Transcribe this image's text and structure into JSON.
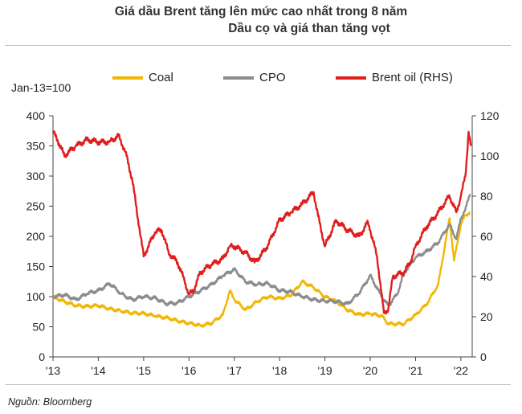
{
  "title_line1": "Giá dầu Brent tăng lên mức cao nhất trong 8 năm",
  "title_line2": "Dầu cọ và giá than tăng vọt",
  "base_label": "Jan-13=100",
  "source": "Nguồn: Bloomberg",
  "chart_data": {
    "type": "line",
    "title": "Giá dầu Brent tăng lên mức cao nhất trong 8 năm",
    "subtitle": "Dầu cọ và giá than tăng vọt",
    "ylabel": "Jan-13=100",
    "y_left_range": [
      0,
      400
    ],
    "y_left_ticks": [
      0,
      50,
      100,
      150,
      200,
      250,
      300,
      350,
      400
    ],
    "y_right_range": [
      0,
      120
    ],
    "y_right_ticks": [
      0,
      20,
      40,
      60,
      80,
      100,
      120
    ],
    "x_range": [
      2013.0,
      2022.25
    ],
    "x_ticks": [
      "'13",
      "'14",
      "'15",
      "'16",
      "'17",
      "'18",
      "'19",
      "'20",
      "'21",
      "'22"
    ],
    "legend_position": "top",
    "series": [
      {
        "name": "Coal",
        "axis": "left",
        "color": "#f2b705",
        "points": [
          [
            2013.0,
            100
          ],
          [
            2013.25,
            92
          ],
          [
            2013.5,
            85
          ],
          [
            2013.75,
            84
          ],
          [
            2014.0,
            85
          ],
          [
            2014.25,
            80
          ],
          [
            2014.5,
            76
          ],
          [
            2014.75,
            73
          ],
          [
            2015.0,
            72
          ],
          [
            2015.25,
            68
          ],
          [
            2015.5,
            65
          ],
          [
            2015.75,
            60
          ],
          [
            2016.0,
            56
          ],
          [
            2016.25,
            52
          ],
          [
            2016.5,
            56
          ],
          [
            2016.75,
            70
          ],
          [
            2016.9,
            110
          ],
          [
            2017.0,
            95
          ],
          [
            2017.25,
            78
          ],
          [
            2017.5,
            92
          ],
          [
            2017.75,
            100
          ],
          [
            2018.0,
            97
          ],
          [
            2018.25,
            102
          ],
          [
            2018.5,
            125
          ],
          [
            2018.75,
            115
          ],
          [
            2019.0,
            100
          ],
          [
            2019.25,
            92
          ],
          [
            2019.5,
            78
          ],
          [
            2019.75,
            70
          ],
          [
            2020.0,
            72
          ],
          [
            2020.25,
            68
          ],
          [
            2020.4,
            55
          ],
          [
            2020.75,
            55
          ],
          [
            2021.0,
            70
          ],
          [
            2021.25,
            88
          ],
          [
            2021.5,
            120
          ],
          [
            2021.75,
            230
          ],
          [
            2021.85,
            160
          ],
          [
            2022.0,
            220
          ],
          [
            2022.1,
            235
          ],
          [
            2022.2,
            240
          ]
        ]
      },
      {
        "name": "CPO",
        "axis": "left",
        "color": "#8c8c8c",
        "points": [
          [
            2013.0,
            100
          ],
          [
            2013.25,
            103
          ],
          [
            2013.5,
            95
          ],
          [
            2013.75,
            105
          ],
          [
            2014.0,
            110
          ],
          [
            2014.25,
            122
          ],
          [
            2014.5,
            105
          ],
          [
            2014.75,
            95
          ],
          [
            2015.0,
            100
          ],
          [
            2015.25,
            98
          ],
          [
            2015.5,
            88
          ],
          [
            2015.75,
            90
          ],
          [
            2016.0,
            100
          ],
          [
            2016.25,
            110
          ],
          [
            2016.5,
            120
          ],
          [
            2016.75,
            135
          ],
          [
            2017.0,
            145
          ],
          [
            2017.25,
            125
          ],
          [
            2017.5,
            120
          ],
          [
            2017.75,
            122
          ],
          [
            2018.0,
            110
          ],
          [
            2018.25,
            108
          ],
          [
            2018.5,
            100
          ],
          [
            2018.75,
            95
          ],
          [
            2019.0,
            93
          ],
          [
            2019.25,
            92
          ],
          [
            2019.5,
            88
          ],
          [
            2019.75,
            105
          ],
          [
            2020.0,
            135
          ],
          [
            2020.25,
            100
          ],
          [
            2020.4,
            85
          ],
          [
            2020.6,
            105
          ],
          [
            2020.75,
            140
          ],
          [
            2021.0,
            165
          ],
          [
            2021.25,
            175
          ],
          [
            2021.5,
            190
          ],
          [
            2021.75,
            220
          ],
          [
            2021.9,
            195
          ],
          [
            2022.0,
            230
          ],
          [
            2022.1,
            245
          ],
          [
            2022.2,
            270
          ]
        ]
      },
      {
        "name": "Brent oil (RHS)",
        "axis": "right",
        "color": "#e01e1e",
        "points": [
          [
            2013.0,
            112
          ],
          [
            2013.1,
            108
          ],
          [
            2013.25,
            100
          ],
          [
            2013.5,
            105
          ],
          [
            2013.75,
            108
          ],
          [
            2014.0,
            107
          ],
          [
            2014.25,
            107
          ],
          [
            2014.45,
            110
          ],
          [
            2014.6,
            102
          ],
          [
            2014.75,
            88
          ],
          [
            2014.9,
            65
          ],
          [
            2015.0,
            50
          ],
          [
            2015.1,
            55
          ],
          [
            2015.25,
            62
          ],
          [
            2015.4,
            63
          ],
          [
            2015.55,
            52
          ],
          [
            2015.75,
            47
          ],
          [
            2015.9,
            38
          ],
          [
            2016.0,
            31
          ],
          [
            2016.1,
            33
          ],
          [
            2016.25,
            42
          ],
          [
            2016.5,
            46
          ],
          [
            2016.75,
            49
          ],
          [
            2016.9,
            55
          ],
          [
            2017.0,
            55
          ],
          [
            2017.25,
            52
          ],
          [
            2017.45,
            47
          ],
          [
            2017.6,
            51
          ],
          [
            2017.75,
            56
          ],
          [
            2018.0,
            68
          ],
          [
            2018.25,
            72
          ],
          [
            2018.5,
            76
          ],
          [
            2018.75,
            82
          ],
          [
            2018.85,
            70
          ],
          [
            2019.0,
            55
          ],
          [
            2019.25,
            68
          ],
          [
            2019.5,
            63
          ],
          [
            2019.75,
            60
          ],
          [
            2019.95,
            67
          ],
          [
            2020.0,
            63
          ],
          [
            2020.15,
            50
          ],
          [
            2020.3,
            22
          ],
          [
            2020.4,
            24
          ],
          [
            2020.5,
            40
          ],
          [
            2020.75,
            42
          ],
          [
            2020.9,
            48
          ],
          [
            2021.0,
            55
          ],
          [
            2021.25,
            65
          ],
          [
            2021.5,
            72
          ],
          [
            2021.75,
            80
          ],
          [
            2021.9,
            72
          ],
          [
            2022.0,
            80
          ],
          [
            2022.1,
            90
          ],
          [
            2022.17,
            112
          ],
          [
            2022.22,
            105
          ]
        ]
      }
    ]
  }
}
